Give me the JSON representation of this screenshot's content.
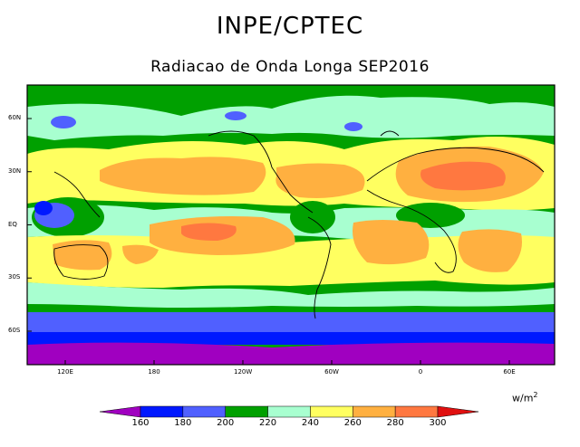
{
  "header": {
    "title": "INPE/CPTEC",
    "subtitle": "Radiacao de Onda Longa SEP2016"
  },
  "map": {
    "lat_labels": [
      "60N",
      "30N",
      "EQ",
      "30S",
      "60S"
    ],
    "lat_values": [
      60,
      30,
      0,
      -30,
      -60
    ],
    "lon_labels": [
      "120E",
      "180",
      "120W",
      "60W",
      "0",
      "60E"
    ],
    "lon_values": [
      120,
      180,
      240,
      300,
      360,
      420
    ]
  },
  "colorbar": {
    "unit_base": "w/m",
    "unit_exp": "2",
    "ticks": [
      "160",
      "180",
      "200",
      "220",
      "240",
      "260",
      "280",
      "300"
    ],
    "colors": [
      "#a000c0",
      "#0018ff",
      "#5060ff",
      "#00a000",
      "#a8ffd0",
      "#ffff60",
      "#ffb040",
      "#ff7840",
      "#e01010"
    ]
  }
}
